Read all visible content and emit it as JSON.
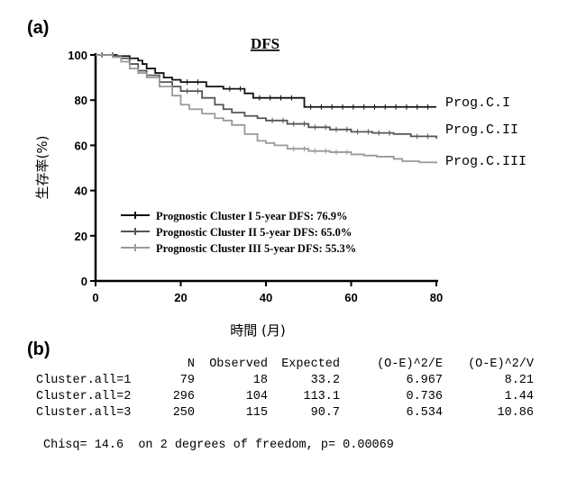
{
  "panel_a_label": "(a)",
  "panel_b_label": "(b)",
  "chart_data": {
    "type": "line",
    "title": "DFS",
    "xlabel": "時間 (月)",
    "ylabel": "生存率(%)",
    "xlim": [
      0,
      80
    ],
    "ylim": [
      0,
      100
    ],
    "xticks": [
      0,
      20,
      40,
      60,
      80
    ],
    "yticks": [
      0,
      20,
      40,
      60,
      80,
      100
    ],
    "legend_position": "bottom-left",
    "series": [
      {
        "name": "Prognostic Cluster I 5-year DFS: 76.9%",
        "end_label": "Prog.C.I",
        "color": "#111111",
        "points": [
          [
            0,
            100
          ],
          [
            5,
            99.5
          ],
          [
            8,
            98.5
          ],
          [
            10,
            97.5
          ],
          [
            11,
            96
          ],
          [
            12,
            94
          ],
          [
            14,
            92
          ],
          [
            16,
            90
          ],
          [
            18,
            89
          ],
          [
            20,
            88
          ],
          [
            25,
            88
          ],
          [
            26,
            86
          ],
          [
            30,
            85
          ],
          [
            35,
            83
          ],
          [
            37,
            81
          ],
          [
            48,
            81
          ],
          [
            49,
            77
          ],
          [
            80,
            77
          ]
        ]
      },
      {
        "name": "Prognostic Cluster II 5-year DFS: 65.0%",
        "end_label": "Prog.C.II",
        "color": "#555555",
        "points": [
          [
            0,
            100
          ],
          [
            4,
            99.5
          ],
          [
            6,
            98.5
          ],
          [
            8,
            96
          ],
          [
            10,
            93
          ],
          [
            12,
            91
          ],
          [
            15,
            88
          ],
          [
            18,
            86
          ],
          [
            20,
            84
          ],
          [
            25,
            81
          ],
          [
            28,
            78
          ],
          [
            30,
            76
          ],
          [
            32,
            74.5
          ],
          [
            35,
            73
          ],
          [
            38,
            72
          ],
          [
            40,
            71
          ],
          [
            45,
            69.5
          ],
          [
            50,
            68
          ],
          [
            55,
            67
          ],
          [
            60,
            66
          ],
          [
            65,
            65.5
          ],
          [
            70,
            65
          ],
          [
            74,
            64
          ],
          [
            80,
            63
          ]
        ]
      },
      {
        "name": "Prognostic Cluster III 5-year DFS: 55.3%",
        "end_label": "Prog.C.III",
        "color": "#9a9a9a",
        "points": [
          [
            0,
            100
          ],
          [
            4,
            99
          ],
          [
            6,
            97
          ],
          [
            8,
            94
          ],
          [
            10,
            92
          ],
          [
            12,
            90
          ],
          [
            15,
            86
          ],
          [
            18,
            82
          ],
          [
            20,
            78
          ],
          [
            22,
            76
          ],
          [
            25,
            74
          ],
          [
            28,
            72
          ],
          [
            30,
            71
          ],
          [
            32,
            69
          ],
          [
            35,
            65
          ],
          [
            38,
            62
          ],
          [
            40,
            61
          ],
          [
            42,
            60
          ],
          [
            45,
            58.5
          ],
          [
            50,
            57.5
          ],
          [
            55,
            57
          ],
          [
            60,
            56
          ],
          [
            63,
            55.5
          ],
          [
            66,
            55
          ],
          [
            70,
            54
          ],
          [
            72,
            53
          ],
          [
            76,
            52.5
          ],
          [
            80,
            52
          ]
        ]
      }
    ]
  },
  "stats_table": {
    "headers": [
      "",
      "N",
      "Observed",
      "Expected",
      "(O-E)^2/E",
      "(O-E)^2/V"
    ],
    "rows": [
      [
        "Cluster.all=1",
        "79",
        "18",
        "33.2",
        "6.967",
        "8.21"
      ],
      [
        "Cluster.all=2",
        "296",
        "104",
        "113.1",
        "0.736",
        "1.44"
      ],
      [
        "Cluster.all=3",
        "250",
        "115",
        "90.7",
        "6.534",
        "10.86"
      ]
    ],
    "chisq_line": "Chisq= 14.6  on 2 degrees of freedom, p= 0.00069"
  }
}
